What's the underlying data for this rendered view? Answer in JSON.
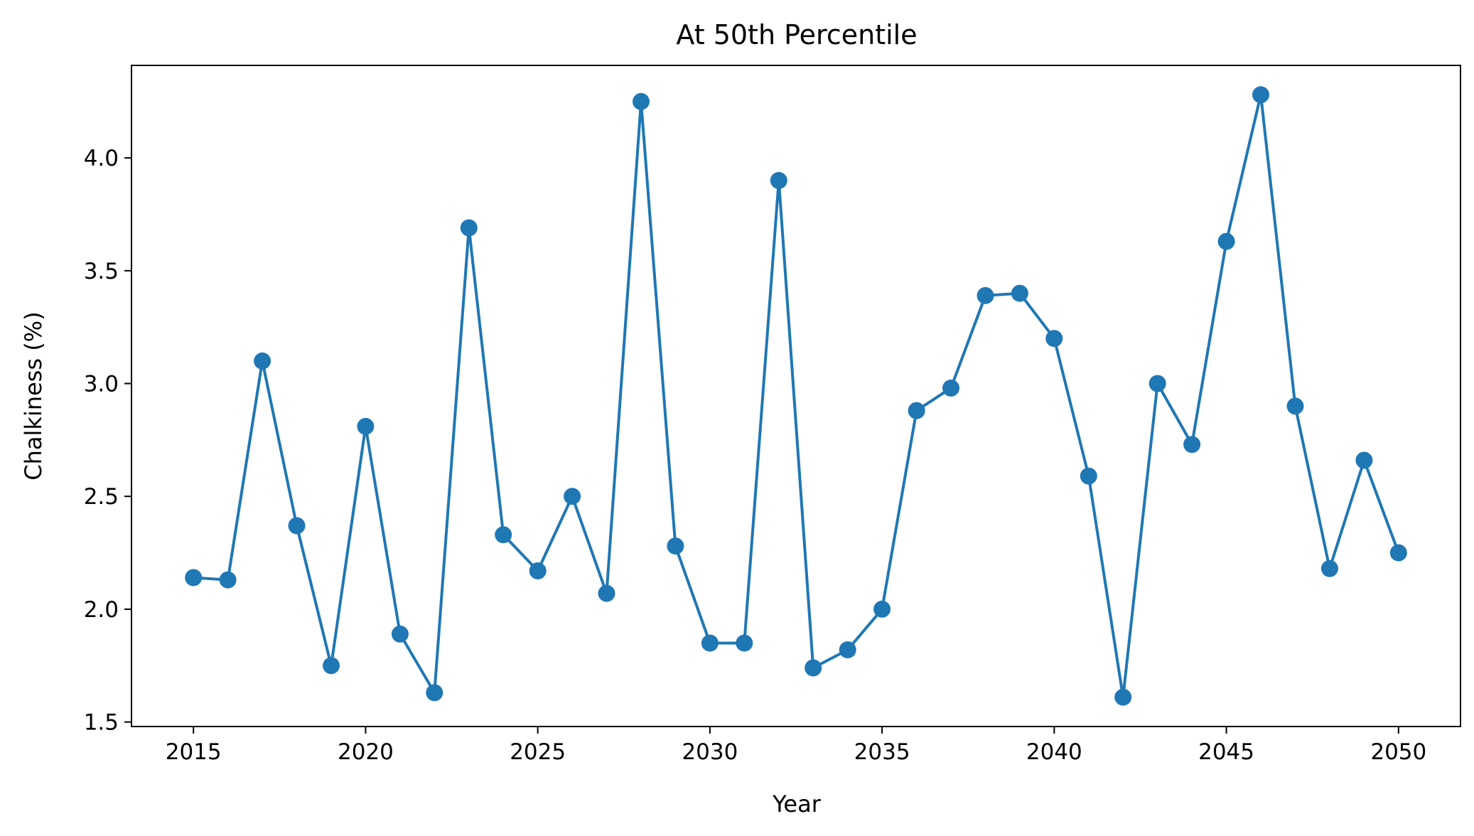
{
  "chart_data": {
    "type": "line",
    "title": "At 50th Percentile",
    "xlabel": "Year",
    "ylabel": "Chalkiness (%)",
    "x": [
      2015,
      2016,
      2017,
      2018,
      2019,
      2020,
      2021,
      2022,
      2023,
      2024,
      2025,
      2026,
      2027,
      2028,
      2029,
      2030,
      2031,
      2032,
      2033,
      2034,
      2035,
      2036,
      2037,
      2038,
      2039,
      2040,
      2041,
      2042,
      2043,
      2044,
      2045,
      2046,
      2047,
      2048,
      2049,
      2050
    ],
    "series": [
      {
        "values": [
          2.14,
          2.13,
          3.1,
          2.37,
          1.75,
          2.81,
          1.89,
          1.63,
          3.69,
          2.33,
          2.17,
          2.5,
          2.07,
          4.25,
          2.28,
          1.85,
          1.85,
          3.9,
          1.74,
          1.82,
          2.0,
          2.88,
          2.98,
          3.39,
          3.4,
          3.2,
          2.59,
          1.61,
          3.0,
          2.73,
          3.63,
          4.28,
          2.9,
          2.18,
          2.66,
          2.25
        ],
        "color": "#1f77b4",
        "marker": "circle"
      }
    ],
    "xticks": [
      "2015",
      "2020",
      "2025",
      "2030",
      "2035",
      "2040",
      "2045",
      "2050"
    ],
    "yticks": [
      "1.5",
      "2.0",
      "2.5",
      "3.0",
      "3.5",
      "4.0"
    ],
    "xlim": [
      2013.2,
      2051.8
    ],
    "ylim": [
      1.48,
      4.41
    ],
    "grid": false,
    "legend": "none"
  }
}
